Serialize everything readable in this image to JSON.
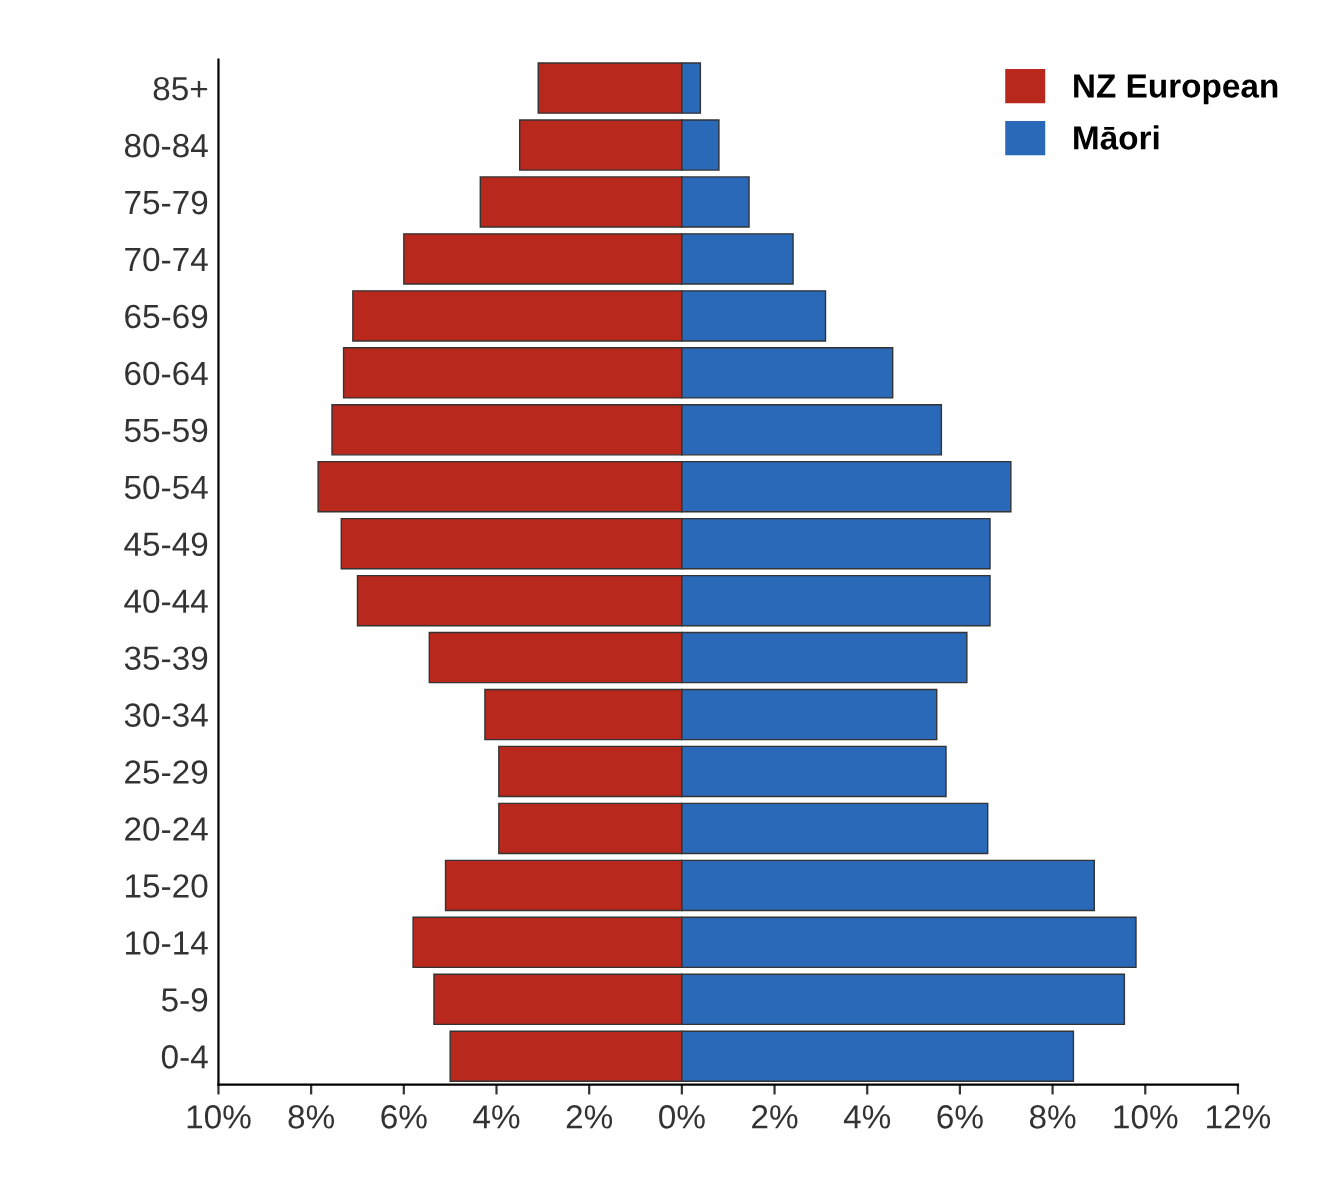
{
  "chart_data": {
    "type": "bar",
    "orientation": "horizontal",
    "stacked": true,
    "categories": [
      "85+",
      "80-84",
      "75-79",
      "70-74",
      "65-69",
      "60-64",
      "55-59",
      "50-54",
      "45-49",
      "40-44",
      "35-39",
      "30-34",
      "25-29",
      "20-24",
      "15-20",
      "10-14",
      "5-9",
      "0-4"
    ],
    "series": [
      {
        "name": "NZ European",
        "color": "#b8281c",
        "values": [
          -3.1,
          -3.5,
          -4.35,
          -6.0,
          -7.1,
          -7.3,
          -7.55,
          -7.85,
          -7.35,
          -7.0,
          -5.45,
          -4.25,
          -3.95,
          -3.95,
          -5.1,
          -5.8,
          -5.35,
          -5.0
        ]
      },
      {
        "name": "Māori",
        "color": "#2a68b8",
        "values": [
          0.4,
          0.8,
          1.45,
          2.4,
          3.1,
          4.55,
          5.6,
          7.1,
          6.65,
          6.65,
          6.15,
          5.5,
          5.7,
          6.6,
          8.9,
          9.8,
          9.55,
          8.45
        ]
      }
    ],
    "xlim": [
      -10,
      12
    ],
    "xticks": [
      {
        "value": -10,
        "label": "10%"
      },
      {
        "value": -8,
        "label": "8%"
      },
      {
        "value": -6,
        "label": "6%"
      },
      {
        "value": -4,
        "label": "4%"
      },
      {
        "value": -2,
        "label": "2%"
      },
      {
        "value": 0,
        "label": "0%"
      },
      {
        "value": 2,
        "label": "2%"
      },
      {
        "value": 4,
        "label": "4%"
      },
      {
        "value": 6,
        "label": "6%"
      },
      {
        "value": 8,
        "label": "8%"
      },
      {
        "value": 10,
        "label": "10%"
      },
      {
        "value": 12,
        "label": "12%"
      }
    ],
    "legend": "top right",
    "grid": false
  }
}
